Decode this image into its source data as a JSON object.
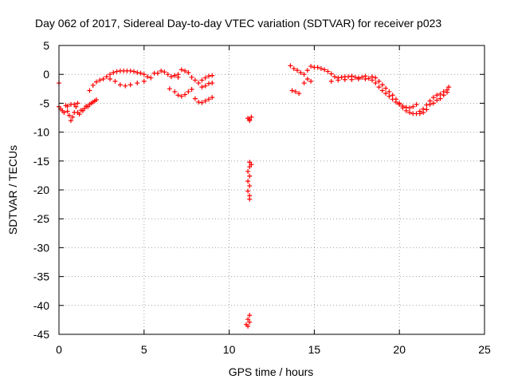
{
  "chart_data": {
    "type": "scatter",
    "title": "Day 062 of 2017, Sidereal Day-to-day VTEC variation (SDTVAR) for receiver p023",
    "xlabel": "GPS time / hours",
    "ylabel": "SDTVAR / TECUs",
    "xlim": [
      0,
      25
    ],
    "ylim": [
      -45,
      5
    ],
    "xticks": [
      0,
      5,
      10,
      15,
      20,
      25
    ],
    "yticks": [
      5,
      0,
      -5,
      -10,
      -15,
      -20,
      -25,
      -30,
      -35,
      -40,
      -45
    ],
    "grid": true,
    "legend": "none",
    "marker": "+",
    "colors": {
      "series": "#ff0000",
      "grid": "#a0a0a0",
      "axes": "#000000"
    },
    "series": [
      {
        "name": "SDTVAR",
        "points": [
          [
            0.0,
            -1.5
          ],
          [
            0.0,
            -5.6
          ],
          [
            0.1,
            -6.0
          ],
          [
            0.2,
            -6.3
          ],
          [
            0.3,
            -6.6
          ],
          [
            0.4,
            -5.4
          ],
          [
            0.5,
            -6.4
          ],
          [
            0.6,
            -7.1
          ],
          [
            0.7,
            -8.0
          ],
          [
            0.8,
            -7.4
          ],
          [
            0.9,
            -6.6
          ],
          [
            1.0,
            -5.6
          ],
          [
            1.1,
            -6.6
          ],
          [
            1.2,
            -6.9
          ],
          [
            1.3,
            -6.2
          ],
          [
            1.4,
            -6.3
          ],
          [
            1.5,
            -5.9
          ],
          [
            1.6,
            -5.5
          ],
          [
            1.7,
            -5.6
          ],
          [
            1.8,
            -5.2
          ],
          [
            1.9,
            -5.0
          ],
          [
            2.0,
            -4.8
          ],
          [
            2.1,
            -4.6
          ],
          [
            2.2,
            -4.4
          ],
          [
            0.5,
            -5.5
          ],
          [
            0.7,
            -5.2
          ],
          [
            0.9,
            -5.2
          ],
          [
            1.1,
            -5.0
          ],
          [
            1.8,
            -2.8
          ],
          [
            2.0,
            -1.9
          ],
          [
            2.2,
            -1.3
          ],
          [
            2.4,
            -1.0
          ],
          [
            2.6,
            -0.8
          ],
          [
            2.8,
            -0.4
          ],
          [
            3.0,
            0.0
          ],
          [
            3.2,
            0.3
          ],
          [
            3.4,
            0.5
          ],
          [
            3.6,
            0.6
          ],
          [
            3.8,
            0.6
          ],
          [
            4.0,
            0.6
          ],
          [
            4.2,
            0.6
          ],
          [
            4.4,
            0.5
          ],
          [
            4.6,
            0.3
          ],
          [
            4.8,
            0.2
          ],
          [
            5.0,
            0.0
          ],
          [
            5.2,
            -0.4
          ],
          [
            5.4,
            -0.6
          ],
          [
            5.6,
            0.2
          ],
          [
            5.8,
            0.2
          ],
          [
            6.0,
            0.6
          ],
          [
            6.2,
            0.4
          ],
          [
            6.4,
            0.0
          ],
          [
            6.6,
            -0.4
          ],
          [
            6.8,
            -0.2
          ],
          [
            7.0,
            0.0
          ],
          [
            3.0,
            -0.8
          ],
          [
            3.3,
            -1.2
          ],
          [
            3.6,
            -1.8
          ],
          [
            3.9,
            -2.0
          ],
          [
            4.2,
            -1.8
          ],
          [
            4.6,
            -1.5
          ],
          [
            5.0,
            -1.2
          ],
          [
            7.0,
            -0.5
          ],
          [
            7.2,
            0.8
          ],
          [
            7.4,
            0.6
          ],
          [
            7.6,
            0.3
          ],
          [
            7.8,
            -0.5
          ],
          [
            8.0,
            -1.0
          ],
          [
            8.2,
            -1.5
          ],
          [
            8.4,
            -1.0
          ],
          [
            8.6,
            -0.6
          ],
          [
            8.8,
            -0.3
          ],
          [
            9.0,
            -0.2
          ],
          [
            6.5,
            -2.5
          ],
          [
            6.8,
            -3.0
          ],
          [
            7.0,
            -3.6
          ],
          [
            7.2,
            -3.8
          ],
          [
            7.4,
            -3.5
          ],
          [
            7.6,
            -3.0
          ],
          [
            7.8,
            -2.6
          ],
          [
            8.0,
            -4.2
          ],
          [
            8.2,
            -4.8
          ],
          [
            8.4,
            -4.9
          ],
          [
            8.6,
            -4.6
          ],
          [
            8.8,
            -4.3
          ],
          [
            9.0,
            -4.0
          ],
          [
            8.4,
            -2.2
          ],
          [
            8.6,
            -2.0
          ],
          [
            8.8,
            -1.6
          ],
          [
            9.0,
            -1.5
          ],
          [
            11.1,
            -7.6
          ],
          [
            11.2,
            -7.8
          ],
          [
            11.3,
            -7.4
          ],
          [
            11.2,
            -8.0
          ],
          [
            11.2,
            -15.2
          ],
          [
            11.2,
            -16.0
          ],
          [
            11.1,
            -16.8
          ],
          [
            11.2,
            -17.6
          ],
          [
            11.1,
            -18.5
          ],
          [
            11.2,
            -19.3
          ],
          [
            11.1,
            -20.2
          ],
          [
            11.2,
            -21.0
          ],
          [
            11.2,
            -21.6
          ],
          [
            11.3,
            -15.6
          ],
          [
            11.2,
            -41.7
          ],
          [
            11.1,
            -42.4
          ],
          [
            11.2,
            -42.9
          ],
          [
            11.0,
            -43.3
          ],
          [
            11.1,
            -43.6
          ],
          [
            13.6,
            1.5
          ],
          [
            13.8,
            1.0
          ],
          [
            14.0,
            0.7
          ],
          [
            14.2,
            0.3
          ],
          [
            14.4,
            0.0
          ],
          [
            14.6,
            -0.8
          ],
          [
            14.8,
            -1.2
          ],
          [
            13.7,
            -2.8
          ],
          [
            13.9,
            -3.0
          ],
          [
            14.1,
            -3.3
          ],
          [
            14.4,
            -1.5
          ],
          [
            14.6,
            0.7
          ],
          [
            14.8,
            1.4
          ],
          [
            15.0,
            1.2
          ],
          [
            15.2,
            1.2
          ],
          [
            15.4,
            1.0
          ],
          [
            15.6,
            0.8
          ],
          [
            15.8,
            0.5
          ],
          [
            16.0,
            0.1
          ],
          [
            16.2,
            -0.4
          ],
          [
            16.4,
            -0.6
          ],
          [
            16.6,
            -0.5
          ],
          [
            16.8,
            -0.4
          ],
          [
            17.0,
            -0.4
          ],
          [
            17.2,
            -0.3
          ],
          [
            17.4,
            -0.5
          ],
          [
            17.6,
            -0.6
          ],
          [
            17.8,
            -0.5
          ],
          [
            18.0,
            -0.3
          ],
          [
            16.0,
            -1.2
          ],
          [
            16.4,
            -1.0
          ],
          [
            16.8,
            -0.9
          ],
          [
            17.2,
            -0.9
          ],
          [
            17.6,
            -0.8
          ],
          [
            18.0,
            -0.8
          ],
          [
            18.2,
            -0.7
          ],
          [
            18.4,
            -1.0
          ],
          [
            18.6,
            -1.5
          ],
          [
            18.8,
            -2.2
          ],
          [
            19.0,
            -2.8
          ],
          [
            19.2,
            -3.3
          ],
          [
            19.4,
            -3.8
          ],
          [
            19.6,
            -4.3
          ],
          [
            19.8,
            -4.8
          ],
          [
            20.0,
            -5.2
          ],
          [
            20.2,
            -5.5
          ],
          [
            20.4,
            -5.7
          ],
          [
            20.6,
            -5.8
          ],
          [
            20.8,
            -5.6
          ],
          [
            21.0,
            -5.2
          ],
          [
            18.4,
            -0.4
          ],
          [
            18.6,
            -0.6
          ],
          [
            18.8,
            -1.2
          ],
          [
            19.0,
            -1.8
          ],
          [
            19.2,
            -2.4
          ],
          [
            19.4,
            -3.0
          ],
          [
            19.6,
            -3.6
          ],
          [
            19.8,
            -4.3
          ],
          [
            20.0,
            -5.0
          ],
          [
            20.2,
            -5.8
          ],
          [
            20.4,
            -6.3
          ],
          [
            20.6,
            -6.6
          ],
          [
            20.8,
            -6.8
          ],
          [
            21.0,
            -6.8
          ],
          [
            21.2,
            -6.8
          ],
          [
            21.4,
            -6.6
          ],
          [
            21.6,
            -6.1
          ],
          [
            21.8,
            -5.2
          ],
          [
            21.2,
            -6.4
          ],
          [
            21.4,
            -6.0
          ],
          [
            21.6,
            -5.3
          ],
          [
            21.8,
            -4.6
          ],
          [
            22.0,
            -4.0
          ],
          [
            22.2,
            -3.6
          ],
          [
            22.4,
            -3.4
          ],
          [
            22.6,
            -3.0
          ],
          [
            22.8,
            -2.7
          ],
          [
            22.9,
            -2.2
          ],
          [
            22.0,
            -5.0
          ],
          [
            22.2,
            -4.5
          ],
          [
            22.4,
            -4.2
          ],
          [
            22.6,
            -3.6
          ],
          [
            22.8,
            -3.1
          ]
        ]
      }
    ]
  }
}
